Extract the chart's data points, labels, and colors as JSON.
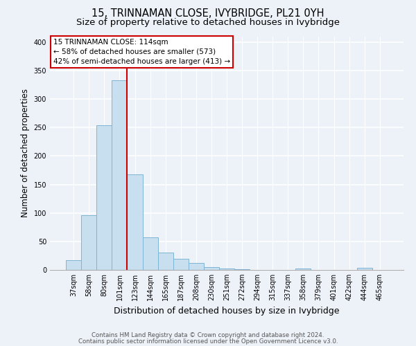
{
  "title": "15, TRINNAMAN CLOSE, IVYBRIDGE, PL21 0YH",
  "subtitle": "Size of property relative to detached houses in Ivybridge",
  "xlabel": "Distribution of detached houses by size in Ivybridge",
  "ylabel": "Number of detached properties",
  "bar_labels": [
    "37sqm",
    "58sqm",
    "80sqm",
    "101sqm",
    "123sqm",
    "144sqm",
    "165sqm",
    "187sqm",
    "208sqm",
    "230sqm",
    "251sqm",
    "272sqm",
    "294sqm",
    "315sqm",
    "337sqm",
    "358sqm",
    "379sqm",
    "401sqm",
    "422sqm",
    "444sqm",
    "465sqm"
  ],
  "bar_values": [
    17,
    96,
    254,
    333,
    168,
    57,
    30,
    19,
    12,
    5,
    2,
    1,
    0,
    0,
    0,
    2,
    0,
    0,
    0,
    4,
    0
  ],
  "bar_color": "#c8dff0",
  "bar_edge_color": "#7fb4d4",
  "vline_x": 3.5,
  "vline_color": "#cc0000",
  "annotation_title": "15 TRINNAMAN CLOSE: 114sqm",
  "annotation_line1": "← 58% of detached houses are smaller (573)",
  "annotation_line2": "42% of semi-detached houses are larger (413) →",
  "annotation_box_edge": "#cc0000",
  "ylim": [
    0,
    410
  ],
  "yticks": [
    0,
    50,
    100,
    150,
    200,
    250,
    300,
    350,
    400
  ],
  "footer1": "Contains HM Land Registry data © Crown copyright and database right 2024.",
  "footer2": "Contains public sector information licensed under the Open Government Licence v3.0.",
  "bg_color": "#edf1f8",
  "grid_color": "white",
  "title_fontsize": 10.5,
  "subtitle_fontsize": 9.5,
  "xlabel_fontsize": 9,
  "ylabel_fontsize": 8.5,
  "tick_fontsize": 7,
  "annot_fontsize": 7.5,
  "footer_fontsize": 6.2
}
